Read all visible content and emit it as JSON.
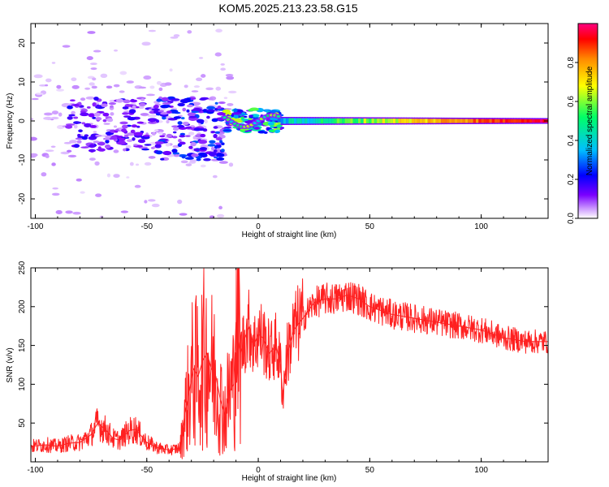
{
  "title": "KOM5.2025.213.23.58.G15",
  "chart_data": [
    {
      "type": "heatmap",
      "xlabel": "Height of straight line (km)",
      "ylabel": "Frequency (Hz)",
      "xlim": [
        -102,
        130
      ],
      "ylim": [
        -25,
        25
      ],
      "xticks": [
        -100,
        -50,
        0,
        50,
        100
      ],
      "yticks": [
        -20,
        -10,
        0,
        10,
        20
      ],
      "colorbar": {
        "label": "Normalized spectral amplitude",
        "range": [
          0,
          1
        ],
        "ticks": [
          "0.0",
          "0.2",
          "0.4",
          "0.6",
          "0.8"
        ],
        "tick_values": [
          0.0,
          0.2,
          0.4,
          0.6,
          0.8
        ],
        "colormap": [
          "#ffffff",
          "#cc99ff",
          "#7a00ff",
          "#0000ff",
          "#00bfff",
          "#00ff66",
          "#ffff00",
          "#ff8800",
          "#ff0000",
          "#ff0080"
        ]
      },
      "features": [
        {
          "region": "scattered_noise",
          "x": [
            -102,
            -10
          ],
          "y": [
            -25,
            25
          ],
          "amplitude": 0.1
        },
        {
          "region": "clusters",
          "x": [
            -85,
            -45
          ],
          "y": [
            -8,
            6
          ],
          "amplitude": 0.25
        },
        {
          "region": "clusters",
          "x": [
            -45,
            -15
          ],
          "y": [
            -10,
            6
          ],
          "amplitude": 0.3
        },
        {
          "region": "signal_start",
          "x": [
            -15,
            10
          ],
          "y": [
            -3,
            3
          ],
          "amplitude": 0.5
        },
        {
          "region": "main_signal",
          "x": [
            10,
            130
          ],
          "y": [
            -1,
            1
          ],
          "amplitude": 0.75
        }
      ]
    },
    {
      "type": "line",
      "xlabel": "Height of straight line (km)",
      "ylabel": "SNR (v/v)",
      "xlim": [
        -102,
        130
      ],
      "ylim": [
        0,
        250
      ],
      "xticks": [
        -100,
        -50,
        0,
        50,
        100
      ],
      "yticks": [
        50,
        100,
        150,
        200,
        250
      ],
      "color": "#ff2020",
      "series": [
        {
          "x": [
            -102,
            -95,
            -90,
            -85,
            -80,
            -75,
            -72,
            -68,
            -65,
            -62,
            -58,
            -55,
            -50,
            -45,
            -40,
            -35,
            -33,
            -31,
            -29,
            -27,
            -25,
            -23,
            -21,
            -19,
            -17,
            -15,
            -13,
            -11,
            -10,
            -8,
            -6,
            -4,
            -2,
            0,
            2,
            5,
            8,
            10,
            11,
            13,
            16,
            20,
            25,
            30,
            35,
            40,
            45,
            50,
            60,
            70,
            80,
            90,
            100,
            110,
            120,
            130
          ],
          "y": [
            20,
            22,
            20,
            24,
            25,
            35,
            50,
            40,
            30,
            28,
            40,
            42,
            25,
            18,
            15,
            18,
            60,
            90,
            120,
            110,
            130,
            140,
            120,
            110,
            80,
            60,
            90,
            100,
            180,
            140,
            160,
            175,
            150,
            165,
            160,
            140,
            150,
            125,
            85,
            140,
            170,
            185,
            205,
            210,
            210,
            215,
            210,
            200,
            190,
            185,
            180,
            175,
            170,
            160,
            155,
            155
          ]
        }
      ]
    }
  ]
}
